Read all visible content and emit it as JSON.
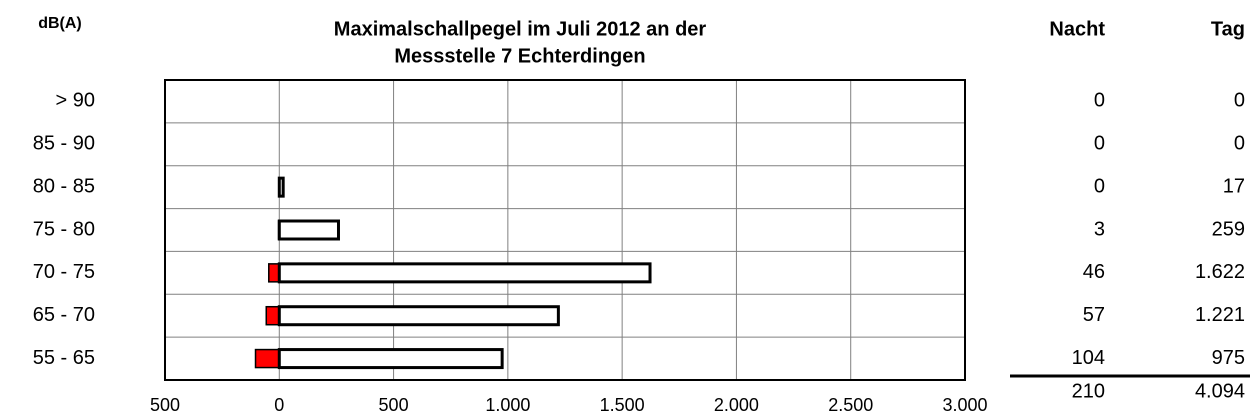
{
  "chart_data": {
    "type": "butterfly-bar",
    "title": [
      "Maximalschallpegel im Juli 2012 an der",
      "Messstelle 7 Echterdingen"
    ],
    "y_label": "dB(A)",
    "categories": [
      "> 90",
      "85 - 90",
      "80 - 85",
      "75 - 80",
      "70 - 75",
      "65 - 70",
      "55 - 65"
    ],
    "series": [
      {
        "name": "Nacht",
        "color": "#ff0000",
        "values": [
          0,
          0,
          0,
          3,
          46,
          57,
          104
        ],
        "total": 210
      },
      {
        "name": "Tag",
        "color": "#ffffff",
        "values": [
          0,
          0,
          17,
          259,
          1622,
          1221,
          975
        ],
        "value_labels": [
          "0",
          "0",
          "17",
          "259",
          "1.622",
          "1.221",
          "975"
        ],
        "total": 4094,
        "total_label": "4.094"
      }
    ],
    "xlim": [
      -500,
      3000
    ],
    "xticks": [
      {
        "value": -500,
        "label": "500"
      },
      0,
      500,
      {
        "value": 1000,
        "label": "1.000"
      },
      {
        "value": 1500,
        "label": "1.500"
      },
      {
        "value": 2000,
        "label": "2.000"
      },
      {
        "value": 2500,
        "label": "2.500"
      },
      {
        "value": 3000,
        "label": "3.000"
      }
    ],
    "grid": true
  }
}
